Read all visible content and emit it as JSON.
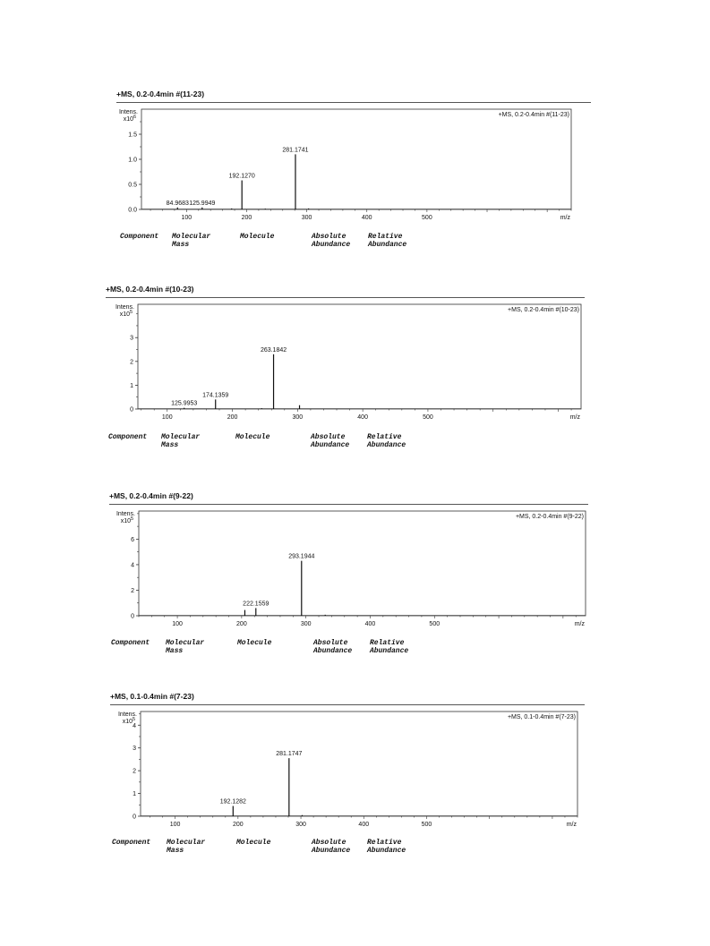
{
  "captions": {
    "component": "Component",
    "molecular_mass": [
      "Molecular",
      "Mass"
    ],
    "molecule": "Molecule",
    "absolute_abundance": [
      "Absolute",
      "Abundance"
    ],
    "relative_abundance": [
      "Relative",
      "Abundance"
    ]
  },
  "chart_data": [
    {
      "type": "bar",
      "title": "+MS, 0.2-0.4min #(11-23)",
      "legend": "+MS, 0.2-0.4min #(11-23)",
      "legend_position": "top-right",
      "ylabel": "Intens.",
      "yexponent": "x10",
      "yexponent_power": "6",
      "xlabel": "m/z",
      "xlim": [
        25,
        740
      ],
      "ylim": [
        0,
        2.0
      ],
      "yticks": [
        0.0,
        0.5,
        1.0,
        1.5
      ],
      "ytick_labels": [
        "0.0",
        "0.5",
        "1.0",
        "1.5"
      ],
      "xticks": [
        100,
        200,
        300,
        400,
        500
      ],
      "peaks": [
        {
          "mz": 84.9683,
          "intensity": 0.04,
          "label": "84.9683"
        },
        {
          "mz": 125.9949,
          "intensity": 0.04,
          "label": "125.9949"
        },
        {
          "mz": 192.127,
          "intensity": 0.58,
          "label": "192.1270"
        },
        {
          "mz": 281.1741,
          "intensity": 1.1,
          "label": "281.1741"
        },
        {
          "mz": 175,
          "intensity": 0.02,
          "label": ""
        },
        {
          "mz": 231,
          "intensity": 0.015,
          "label": ""
        },
        {
          "mz": 303,
          "intensity": 0.02,
          "label": ""
        }
      ]
    },
    {
      "type": "bar",
      "title": "+MS, 0.2-0.4min #(10-23)",
      "legend": "+MS, 0.2-0.4min #(10-23)",
      "legend_position": "top-right",
      "ylabel": "Intens.",
      "yexponent": "x10",
      "yexponent_power": "5",
      "xlabel": "m/z",
      "xlim": [
        55,
        735
      ],
      "ylim": [
        0,
        4.4
      ],
      "yticks": [
        0,
        1,
        2,
        3
      ],
      "ytick_labels": [
        "0",
        "1",
        "2",
        "3"
      ],
      "xticks": [
        100,
        200,
        300,
        400,
        500
      ],
      "peaks": [
        {
          "mz": 125.9953,
          "intensity": 0.05,
          "label": "125.9953"
        },
        {
          "mz": 174.1359,
          "intensity": 0.4,
          "label": "174.1359"
        },
        {
          "mz": 263.1842,
          "intensity": 2.3,
          "label": "263.1842"
        },
        {
          "mz": 303,
          "intensity": 0.16,
          "label": ""
        },
        {
          "mz": 245,
          "intensity": 0.03,
          "label": ""
        }
      ]
    },
    {
      "type": "bar",
      "title": "+MS, 0.2-0.4min #(9-22)",
      "legend": "+MS, 0.2-0.4min #(9-22)",
      "legend_position": "top-right",
      "ylabel": "Intens.",
      "yexponent": "x10",
      "yexponent_power": "5",
      "xlabel": "m/z",
      "xlim": [
        40,
        735
      ],
      "ylim": [
        0,
        8.2
      ],
      "yticks": [
        0,
        2,
        4,
        6
      ],
      "ytick_labels": [
        "0",
        "2",
        "4",
        "6"
      ],
      "xticks": [
        100,
        200,
        300,
        400,
        500
      ],
      "peaks": [
        {
          "mz": 205,
          "intensity": 0.45,
          "label": ""
        },
        {
          "mz": 222.1559,
          "intensity": 0.6,
          "label": "222.1559"
        },
        {
          "mz": 293.1944,
          "intensity": 4.3,
          "label": "293.1944"
        },
        {
          "mz": 330,
          "intensity": 0.08,
          "label": ""
        }
      ]
    },
    {
      "type": "bar",
      "title": "+MS, 0.1-0.4min #(7-23)",
      "legend": "+MS, 0.1-0.4min #(7-23)",
      "legend_position": "top-right",
      "ylabel": "Intens.",
      "yexponent": "x10",
      "yexponent_power": "5",
      "xlabel": "m/z",
      "xlim": [
        45,
        740
      ],
      "ylim": [
        0,
        4.6
      ],
      "yticks": [
        0,
        1,
        2,
        3,
        4
      ],
      "ytick_labels": [
        "0",
        "1",
        "2",
        "3",
        "4"
      ],
      "xticks": [
        100,
        200,
        300,
        400,
        500
      ],
      "peaks": [
        {
          "mz": 192.1282,
          "intensity": 0.45,
          "label": "192.1282"
        },
        {
          "mz": 281.1747,
          "intensity": 2.55,
          "label": "281.1747"
        },
        {
          "mz": 302,
          "intensity": 0.05,
          "label": ""
        }
      ]
    }
  ]
}
